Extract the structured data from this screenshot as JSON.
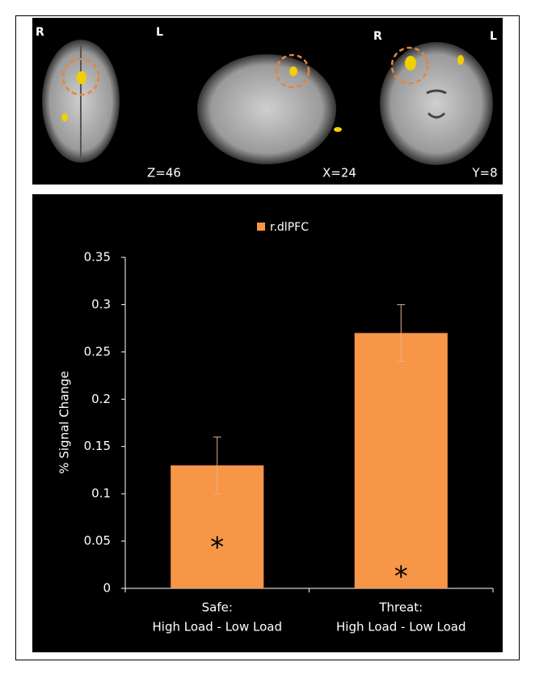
{
  "image_panel": {
    "slices": [
      {
        "left_label": "R",
        "right_label": "L",
        "coordinate": "Z=46"
      },
      {
        "coordinate": "X=24"
      },
      {
        "left_label": "R",
        "right_label": "L",
        "coordinate": "Y=8"
      }
    ]
  },
  "chart_data": {
    "type": "bar",
    "ylabel": "% Signal Change",
    "categories": [
      [
        "Safe:",
        "High Load - Low Load"
      ],
      [
        "Threat:",
        "High Load - Low Load"
      ]
    ],
    "series": [
      {
        "name": "r.dlPFC",
        "color": "#f79646",
        "values": [
          0.13,
          0.27
        ],
        "errors": [
          0.03,
          0.03
        ]
      }
    ],
    "annotations": [
      "*",
      "*"
    ],
    "ylim": [
      0,
      0.35
    ],
    "yticks": [
      0,
      0.05,
      0.1,
      0.15,
      0.2,
      0.25,
      0.3,
      0.35
    ]
  }
}
